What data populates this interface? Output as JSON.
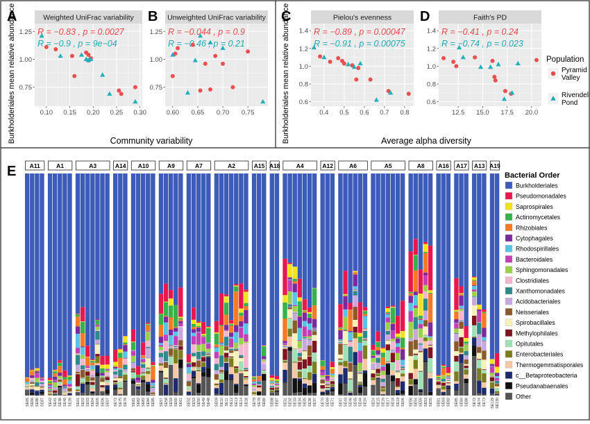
{
  "panels_top": [
    {
      "letter": "A",
      "strip": "Weighted UniFrac variability",
      "stats": [
        {
          "text": "R = −0.83 , p = 0.0027",
          "color": "#e8494b"
        },
        {
          "text": "R = −0.9 , p = 9e−04",
          "color": "#22aab5"
        }
      ],
      "xlim": [
        0.075,
        0.305
      ],
      "xticks": [
        "0.10",
        "0.15",
        "0.20",
        "0.25",
        "0.30"
      ],
      "xtick_values": [
        0.1,
        0.15,
        0.2,
        0.25,
        0.3
      ],
      "points_pyramid": [
        [
          0.1,
          1.11
        ],
        [
          0.12,
          1.09
        ],
        [
          0.155,
          1.03
        ],
        [
          0.16,
          0.85
        ],
        [
          0.185,
          1.06
        ],
        [
          0.19,
          1.04
        ],
        [
          0.195,
          1.01
        ],
        [
          0.19,
          0.99
        ],
        [
          0.255,
          0.72
        ],
        [
          0.26,
          0.69
        ],
        [
          0.29,
          0.75
        ]
      ],
      "points_rivendell": [
        [
          0.09,
          1.21
        ],
        [
          0.13,
          1.03
        ],
        [
          0.175,
          1.04
        ],
        [
          0.185,
          1.0
        ],
        [
          0.19,
          0.99
        ],
        [
          0.195,
          1.0
        ],
        [
          0.22,
          0.86
        ],
        [
          0.235,
          0.69
        ],
        [
          0.29,
          0.62
        ]
      ]
    },
    {
      "letter": "B",
      "strip": "Unweighted UniFrac variability",
      "stats": [
        {
          "text": "R = −0.044 , p = 0.9",
          "color": "#e8494b"
        },
        {
          "text": "R = −0.46 , p = 0.21",
          "color": "#22aab5"
        }
      ],
      "xlim": [
        0.585,
        0.79
      ],
      "xticks": [
        "0.60",
        "0.65",
        "0.70",
        "0.75"
      ],
      "xtick_values": [
        0.6,
        0.65,
        0.7,
        0.75
      ],
      "points_pyramid": [
        [
          0.6,
          0.85
        ],
        [
          0.605,
          1.05
        ],
        [
          0.61,
          1.1
        ],
        [
          0.64,
          1.13
        ],
        [
          0.655,
          0.72
        ],
        [
          0.665,
          0.96
        ],
        [
          0.675,
          0.73
        ],
        [
          0.685,
          1.03
        ],
        [
          0.7,
          0.96
        ],
        [
          0.72,
          0.75
        ],
        [
          0.75,
          1.07
        ]
      ],
      "points_rivendell": [
        [
          0.6,
          1.04
        ],
        [
          0.63,
          0.7
        ],
        [
          0.645,
          0.99
        ],
        [
          0.655,
          1.21
        ],
        [
          0.675,
          1.15
        ],
        [
          0.7,
          1.1
        ],
        [
          0.78,
          0.62
        ]
      ]
    },
    {
      "letter": "C",
      "strip": "Pielou's evenness",
      "stats": [
        {
          "text": "R = −0.89 , p = 0.00047",
          "color": "#e8494b"
        },
        {
          "text": "R = −0.91 , p = 0.00075",
          "color": "#22aab5"
        }
      ],
      "xlim": [
        0.335,
        0.845
      ],
      "xticks": [
        "0.4",
        "0.5",
        "0.6",
        "0.7",
        "0.8"
      ],
      "xtick_values": [
        0.4,
        0.5,
        0.6,
        0.7,
        0.8
      ],
      "points_pyramid": [
        [
          0.38,
          1.11
        ],
        [
          0.43,
          1.05
        ],
        [
          0.47,
          1.09
        ],
        [
          0.49,
          1.06
        ],
        [
          0.5,
          1.03
        ],
        [
          0.54,
          1.01
        ],
        [
          0.56,
          0.85
        ],
        [
          0.57,
          0.98
        ],
        [
          0.63,
          0.85
        ],
        [
          0.72,
          0.72
        ],
        [
          0.82,
          0.69
        ]
      ],
      "points_rivendell": [
        [
          0.35,
          1.21
        ],
        [
          0.4,
          1.1
        ],
        [
          0.52,
          1.02
        ],
        [
          0.55,
          0.99
        ],
        [
          0.58,
          1.03
        ],
        [
          0.66,
          0.62
        ],
        [
          0.73,
          0.7
        ]
      ]
    },
    {
      "letter": "D",
      "strip": "Faith's PD",
      "stats": [
        {
          "text": "R = −0.41 , p = 0.24",
          "color": "#e8494b"
        },
        {
          "text": "R = −0.74 , p = 0.023",
          "color": "#22aab5"
        }
      ],
      "xlim": [
        10.5,
        21.0
      ],
      "xticks": [
        "12.5",
        "15.0",
        "17.5",
        "20.0"
      ],
      "xtick_values": [
        12.5,
        15.0,
        17.5,
        20.0
      ],
      "points_pyramid": [
        [
          11.0,
          1.09
        ],
        [
          12.0,
          1.05
        ],
        [
          12.3,
          1.0
        ],
        [
          14.2,
          1.1
        ],
        [
          16.0,
          1.06
        ],
        [
          16.2,
          0.88
        ],
        [
          16.3,
          0.84
        ],
        [
          17.3,
          0.72
        ],
        [
          17.9,
          0.69
        ],
        [
          20.5,
          1.07
        ]
      ],
      "points_rivendell": [
        [
          12.6,
          1.21
        ],
        [
          13.0,
          1.1
        ],
        [
          14.8,
          0.99
        ],
        [
          15.8,
          0.99
        ],
        [
          16.6,
          1.02
        ],
        [
          17.2,
          0.63
        ],
        [
          18.0,
          0.7
        ],
        [
          18.6,
          1.03
        ]
      ]
    }
  ],
  "top_ylim": [
    0.58,
    1.32
  ],
  "top_yticks_ab": [
    "0.75",
    "1.00",
    "1.25"
  ],
  "top_yticks_ab_values": [
    0.75,
    1.0,
    1.25
  ],
  "top_ylim_cd": [
    0.55,
    1.48
  ],
  "top_yticks_cd": [
    "0.6",
    "0.8",
    "1.0",
    "1.2",
    "1.4"
  ],
  "top_yticks_cd_values": [
    0.6,
    0.8,
    1.0,
    1.2,
    1.4
  ],
  "ylabel_top": "Burkholderiales mean relative abundance",
  "xlabel_ab": "Community variability",
  "xlabel_cd": "Average alpha diversity",
  "population_legend": {
    "title": "Population",
    "entries": [
      {
        "label": [
          "Pyramid",
          "Valley"
        ],
        "color": "#e8494b",
        "shape": "circle"
      },
      {
        "label": [
          "Rivendell",
          "Pond"
        ],
        "color": "#22aab5",
        "shape": "triangle"
      }
    ]
  },
  "panel_e": {
    "letter": "E",
    "legend_title": "Bacterial Order",
    "orders": [
      {
        "name": "Burkholderiales",
        "color": "#3d5bb8"
      },
      {
        "name": "Pseudomonadales",
        "color": "#e8174d"
      },
      {
        "name": "Saprospirales",
        "color": "#f2e41a"
      },
      {
        "name": "Actinomycetales",
        "color": "#37b14b"
      },
      {
        "name": "Rhizobiales",
        "color": "#f47a25"
      },
      {
        "name": "Cytophagales",
        "color": "#7a2a9c"
      },
      {
        "name": "Rhodospirillales",
        "color": "#59c3e6"
      },
      {
        "name": "Bacteroidales",
        "color": "#c23fb5"
      },
      {
        "name": "Sphingomonadales",
        "color": "#9bd14a"
      },
      {
        "name": "Clostridiales",
        "color": "#f5b6cf"
      },
      {
        "name": "Xanthomonadales",
        "color": "#2e8a8a"
      },
      {
        "name": "Acidobacteriales",
        "color": "#c6a8df"
      },
      {
        "name": "Neisseriales",
        "color": "#8b5a2b"
      },
      {
        "name": "Spirobacillales",
        "color": "#f6f1b8"
      },
      {
        "name": "Methylophilales",
        "color": "#7d1420"
      },
      {
        "name": "Opitutales",
        "color": "#9fe0b4"
      },
      {
        "name": "Enterobacteriales",
        "color": "#7b7d1e"
      },
      {
        "name": "Thermogemmatisporales",
        "color": "#f6c7a4"
      },
      {
        "name": "c__Betaproteobacteria",
        "color": "#1d2a6e"
      },
      {
        "name": "Pseudanabaenales",
        "color": "#111111"
      },
      {
        "name": "Other",
        "color": "#555555"
      }
    ],
    "groups": [
      {
        "label": "A11",
        "samples": [
          "SE65",
          "SE66",
          "SE86",
          "SE87"
        ]
      },
      {
        "label": "A1",
        "samples": [
          "SE42",
          "SE41",
          "SE38",
          "SE40",
          "SE39"
        ]
      },
      {
        "label": "A3",
        "samples": [
          "SE01",
          "SE02",
          "SE03",
          "SE04",
          "SE05",
          "SE06",
          "SE07"
        ]
      },
      {
        "label": "A14",
        "samples": [
          "SE72",
          "SE75",
          "SE76"
        ]
      },
      {
        "label": "A10",
        "samples": [
          "SE81",
          "SE82",
          "SE83",
          "SE84",
          "SE85"
        ]
      },
      {
        "label": "A9",
        "samples": [
          "SE57",
          "SE58",
          "SE59",
          "SE60",
          "SE61"
        ]
      },
      {
        "label": "A7",
        "samples": [
          "SE52",
          "SE53",
          "SE50",
          "SE49",
          "SE48"
        ]
      },
      {
        "label": "A2",
        "samples": [
          "SE09",
          "SE10",
          "SE11",
          "SE12",
          "SE13",
          "SE14",
          "SE28"
        ]
      },
      {
        "label": "A15",
        "samples": [
          "SE79",
          "SE78",
          "SE80"
        ]
      },
      {
        "label": "A18",
        "samples": [
          "SE88",
          "SE87"
        ]
      },
      {
        "label": "A4",
        "samples": [
          "SE31",
          "SE32",
          "SE33",
          "SE34",
          "SE35",
          "SE36",
          "SE37"
        ]
      },
      {
        "label": "A12",
        "samples": [
          "SE70",
          "SE69",
          "SE71"
        ]
      },
      {
        "label": "A6",
        "samples": [
          "SE47",
          "SE43",
          "SE46",
          "SE45",
          "SE44",
          "SE24"
        ]
      },
      {
        "label": "A5",
        "samples": [
          "SE24",
          "SE15",
          "SE16",
          "SE17",
          "SE18",
          "SE19",
          "SE06"
        ]
      },
      {
        "label": "A8",
        "samples": [
          "SE56",
          "SE54",
          "SE55",
          "SE53",
          "SE55"
        ]
      },
      {
        "label": "A16",
        "samples": [
          "SE81",
          "SE83",
          "SE82"
        ]
      },
      {
        "label": "A17",
        "samples": [
          "SE85",
          "SE84",
          "SE86"
        ]
      },
      {
        "label": "A13",
        "samples": [
          "SE72",
          "SE74",
          "SE73"
        ]
      },
      {
        "label": "A19",
        "samples": [
          "SE129",
          "SE130"
        ]
      }
    ]
  },
  "chart_data": [
    {
      "type": "scatter",
      "title": "Weighted UniFrac variability",
      "xlabel": "Community variability",
      "ylabel": "Burkholderiales mean relative abundance",
      "series": [
        {
          "name": "Pyramid Valley",
          "x": [
            0.1,
            0.12,
            0.155,
            0.16,
            0.185,
            0.19,
            0.195,
            0.19,
            0.255,
            0.26,
            0.29
          ],
          "y": [
            1.11,
            1.09,
            1.03,
            0.85,
            1.06,
            1.04,
            1.01,
            0.99,
            0.72,
            0.69,
            0.75
          ]
        },
        {
          "name": "Rivendell Pond",
          "x": [
            0.09,
            0.13,
            0.175,
            0.185,
            0.19,
            0.195,
            0.22,
            0.235,
            0.29
          ],
          "y": [
            1.21,
            1.03,
            1.04,
            1.0,
            0.99,
            1.0,
            0.86,
            0.69,
            0.62
          ]
        }
      ]
    },
    {
      "type": "scatter",
      "title": "Unweighted UniFrac variability",
      "xlabel": "Community variability",
      "ylabel": "Burkholderiales mean relative abundance",
      "series": [
        {
          "name": "Pyramid Valley",
          "x": [
            0.6,
            0.605,
            0.61,
            0.64,
            0.655,
            0.665,
            0.675,
            0.685,
            0.7,
            0.72,
            0.75
          ],
          "y": [
            0.85,
            1.05,
            1.1,
            1.13,
            0.72,
            0.96,
            0.73,
            1.03,
            0.96,
            0.75,
            1.07
          ]
        },
        {
          "name": "Rivendell Pond",
          "x": [
            0.6,
            0.63,
            0.645,
            0.655,
            0.675,
            0.7,
            0.78
          ],
          "y": [
            1.04,
            0.7,
            0.99,
            1.21,
            1.15,
            1.1,
            0.62
          ]
        }
      ]
    },
    {
      "type": "scatter",
      "title": "Pielou's evenness",
      "xlabel": "Average alpha diversity",
      "ylabel": "Burkholderiales mean relative abundance",
      "series": [
        {
          "name": "Pyramid Valley",
          "x": [
            0.38,
            0.43,
            0.47,
            0.49,
            0.5,
            0.54,
            0.56,
            0.57,
            0.63,
            0.72,
            0.82
          ],
          "y": [
            1.11,
            1.05,
            1.09,
            1.06,
            1.03,
            1.01,
            0.85,
            0.98,
            0.85,
            0.72,
            0.69
          ]
        },
        {
          "name": "Rivendell Pond",
          "x": [
            0.35,
            0.4,
            0.52,
            0.55,
            0.58,
            0.66,
            0.73
          ],
          "y": [
            1.21,
            1.1,
            1.02,
            0.99,
            1.03,
            0.62,
            0.7
          ]
        }
      ]
    },
    {
      "type": "scatter",
      "title": "Faith's PD",
      "xlabel": "Average alpha diversity",
      "ylabel": "Burkholderiales mean relative abundance",
      "series": [
        {
          "name": "Pyramid Valley",
          "x": [
            11.0,
            12.0,
            12.3,
            14.2,
            16.0,
            16.2,
            16.3,
            17.3,
            17.9,
            20.5
          ],
          "y": [
            1.09,
            1.05,
            1.0,
            1.1,
            1.06,
            0.88,
            0.84,
            0.72,
            0.69,
            1.07
          ]
        },
        {
          "name": "Rivendell Pond",
          "x": [
            12.6,
            13.0,
            14.8,
            15.8,
            16.6,
            17.2,
            18.0,
            18.6
          ],
          "y": [
            1.21,
            1.1,
            0.99,
            0.99,
            1.02,
            0.63,
            0.7,
            1.03
          ]
        }
      ]
    },
    {
      "type": "bar",
      "stacked": true,
      "title": "",
      "legend_title": "Bacterial Order",
      "note": "per-sample relative abundance stacks (approximate)"
    }
  ]
}
